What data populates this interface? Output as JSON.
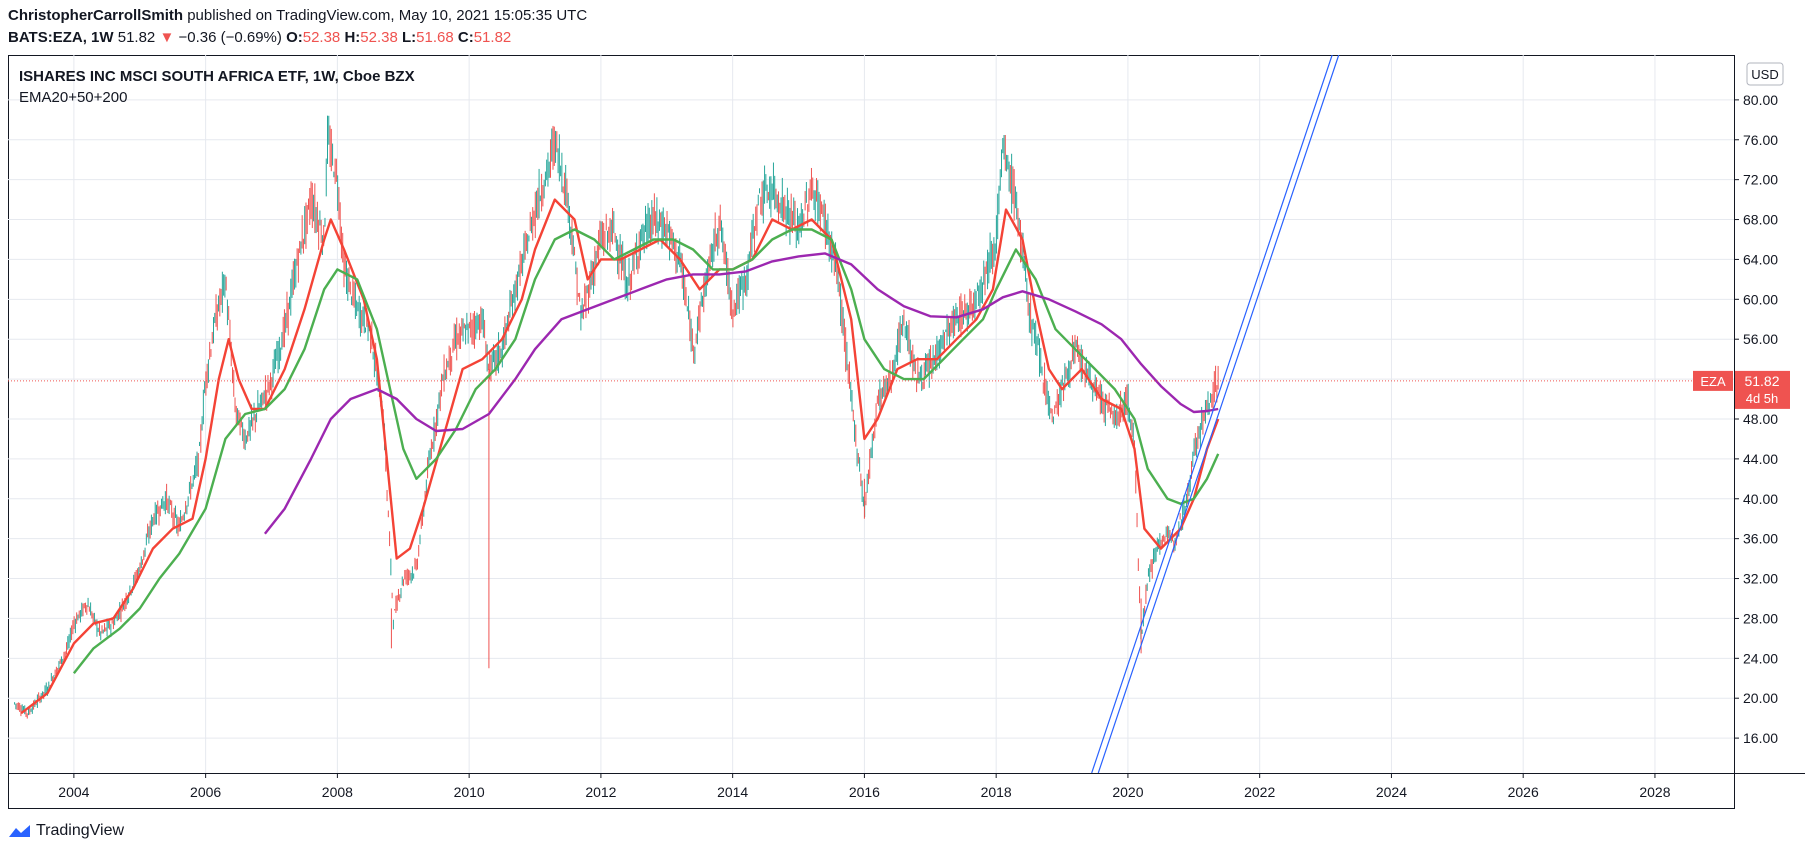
{
  "header": {
    "author": "ChristopherCarrollSmith",
    "published_text": "published on TradingView.com, May 10, 2021 15:05:35 UTC",
    "symbol": "BATS:EZA, 1W",
    "last_price": "51.82",
    "change": "−0.36 (−0.69%)",
    "open_label": "O:",
    "open": "52.38",
    "high_label": "H:",
    "high": "52.38",
    "low_label": "L:",
    "low": "51.68",
    "close_label": "C:",
    "close": "51.82"
  },
  "footer": {
    "brand": "TradingView"
  },
  "colors": {
    "ema20": "#f44336",
    "ema50": "#4caf50",
    "ema200": "#9c27b0",
    "trend": "#2962ff",
    "up": "#26a69a",
    "down": "#ef5350",
    "badge": "#ef5350"
  },
  "chart_data": {
    "type": "line",
    "title": "ISHARES INC MSCI SOUTH AFRICA ETF, 1W, Cboe BZX",
    "subtitle": "EMA20+50+200",
    "currency": "USD",
    "badge": {
      "symbol": "EZA",
      "price": "51.82",
      "countdown": "4d 5h",
      "value": 51.82
    },
    "xlim": [
      2003.0,
      2029.2
    ],
    "ylim": [
      12.5,
      84.5
    ],
    "x_ticks": [
      "2004",
      "2006",
      "2008",
      "2010",
      "2012",
      "2014",
      "2016",
      "2018",
      "2020",
      "2022",
      "2024",
      "2026",
      "2028"
    ],
    "y_ticks": [
      "16.00",
      "20.00",
      "24.00",
      "28.00",
      "32.00",
      "36.00",
      "40.00",
      "44.00",
      "48.00",
      "52.00",
      "56.00",
      "60.00",
      "64.00",
      "68.00",
      "72.00",
      "76.00",
      "80.00"
    ],
    "series": [
      {
        "key": "price",
        "values": [
          [
            2003.1,
            19.5
          ],
          [
            2003.3,
            18.5
          ],
          [
            2003.6,
            21
          ],
          [
            2003.9,
            25
          ],
          [
            2004.0,
            27.5
          ],
          [
            2004.2,
            29.5
          ],
          [
            2004.4,
            26.5
          ],
          [
            2004.6,
            27.5
          ],
          [
            2004.8,
            30
          ],
          [
            2005.0,
            33
          ],
          [
            2005.2,
            38
          ],
          [
            2005.4,
            40
          ],
          [
            2005.6,
            37
          ],
          [
            2005.9,
            44
          ],
          [
            2006.0,
            52
          ],
          [
            2006.15,
            58
          ],
          [
            2006.3,
            62
          ],
          [
            2006.45,
            49
          ],
          [
            2006.6,
            46
          ],
          [
            2006.8,
            49
          ],
          [
            2007.0,
            52
          ],
          [
            2007.2,
            57
          ],
          [
            2007.4,
            64
          ],
          [
            2007.6,
            70
          ],
          [
            2007.8,
            66
          ],
          [
            2007.85,
            76
          ],
          [
            2008.0,
            72
          ],
          [
            2008.1,
            63
          ],
          [
            2008.3,
            59
          ],
          [
            2008.5,
            57
          ],
          [
            2008.7,
            48
          ],
          [
            2008.85,
            28
          ],
          [
            2009.0,
            32
          ],
          [
            2009.2,
            33
          ],
          [
            2009.4,
            44
          ],
          [
            2009.6,
            52
          ],
          [
            2009.8,
            56
          ],
          [
            2010.0,
            57
          ],
          [
            2010.2,
            58
          ],
          [
            2010.3,
            53
          ],
          [
            2010.5,
            55
          ],
          [
            2010.7,
            61
          ],
          [
            2010.9,
            66
          ],
          [
            2011.0,
            69
          ],
          [
            2011.2,
            73
          ],
          [
            2011.3,
            76
          ],
          [
            2011.5,
            70
          ],
          [
            2011.7,
            58
          ],
          [
            2011.85,
            62
          ],
          [
            2012.0,
            66
          ],
          [
            2012.2,
            67
          ],
          [
            2012.4,
            61
          ],
          [
            2012.6,
            66
          ],
          [
            2012.8,
            68
          ],
          [
            2013.0,
            67
          ],
          [
            2013.2,
            64
          ],
          [
            2013.4,
            55
          ],
          [
            2013.6,
            62
          ],
          [
            2013.8,
            68
          ],
          [
            2014.0,
            59
          ],
          [
            2014.2,
            62
          ],
          [
            2014.4,
            70
          ],
          [
            2014.6,
            71
          ],
          [
            2014.8,
            69
          ],
          [
            2015.0,
            67
          ],
          [
            2015.2,
            71
          ],
          [
            2015.4,
            68
          ],
          [
            2015.6,
            62
          ],
          [
            2015.8,
            50
          ],
          [
            2016.0,
            39
          ],
          [
            2016.2,
            50
          ],
          [
            2016.4,
            52
          ],
          [
            2016.6,
            58
          ],
          [
            2016.8,
            52
          ],
          [
            2017.0,
            53
          ],
          [
            2017.2,
            56
          ],
          [
            2017.4,
            58
          ],
          [
            2017.6,
            59
          ],
          [
            2017.8,
            62
          ],
          [
            2018.0,
            66
          ],
          [
            2018.1,
            75
          ],
          [
            2018.3,
            70
          ],
          [
            2018.5,
            59
          ],
          [
            2018.7,
            53
          ],
          [
            2018.85,
            48
          ],
          [
            2019.0,
            51
          ],
          [
            2019.2,
            55
          ],
          [
            2019.4,
            52
          ],
          [
            2019.6,
            50
          ],
          [
            2019.8,
            48
          ],
          [
            2020.0,
            50
          ],
          [
            2020.1,
            45
          ],
          [
            2020.2,
            26
          ],
          [
            2020.3,
            32
          ],
          [
            2020.5,
            36
          ],
          [
            2020.7,
            36
          ],
          [
            2020.9,
            40
          ],
          [
            2021.0,
            45
          ],
          [
            2021.2,
            49
          ],
          [
            2021.3,
            51
          ],
          [
            2021.37,
            51.8
          ]
        ]
      },
      {
        "key": "ema20",
        "values": [
          [
            2003.2,
            18.5
          ],
          [
            2003.6,
            20.5
          ],
          [
            2004.0,
            25.5
          ],
          [
            2004.3,
            27.5
          ],
          [
            2004.6,
            28
          ],
          [
            2004.9,
            31
          ],
          [
            2005.2,
            35
          ],
          [
            2005.5,
            37
          ],
          [
            2005.8,
            38
          ],
          [
            2006.0,
            44
          ],
          [
            2006.2,
            52
          ],
          [
            2006.35,
            56
          ],
          [
            2006.5,
            52
          ],
          [
            2006.7,
            49
          ],
          [
            2006.9,
            49
          ],
          [
            2007.2,
            53
          ],
          [
            2007.5,
            59
          ],
          [
            2007.8,
            66
          ],
          [
            2007.9,
            68
          ],
          [
            2008.1,
            65
          ],
          [
            2008.4,
            60
          ],
          [
            2008.6,
            54
          ],
          [
            2008.75,
            44
          ],
          [
            2008.9,
            34
          ],
          [
            2009.1,
            35
          ],
          [
            2009.3,
            39
          ],
          [
            2009.6,
            46
          ],
          [
            2009.9,
            53
          ],
          [
            2010.2,
            54
          ],
          [
            2010.5,
            56
          ],
          [
            2010.8,
            60
          ],
          [
            2011.0,
            65
          ],
          [
            2011.3,
            70
          ],
          [
            2011.6,
            68
          ],
          [
            2011.8,
            62
          ],
          [
            2012.0,
            64
          ],
          [
            2012.3,
            64
          ],
          [
            2012.6,
            65
          ],
          [
            2012.9,
            66
          ],
          [
            2013.2,
            64
          ],
          [
            2013.5,
            61
          ],
          [
            2013.8,
            63
          ],
          [
            2014.0,
            63
          ],
          [
            2014.3,
            64
          ],
          [
            2014.6,
            68
          ],
          [
            2014.9,
            67
          ],
          [
            2015.2,
            68
          ],
          [
            2015.5,
            66
          ],
          [
            2015.8,
            58
          ],
          [
            2016.0,
            46
          ],
          [
            2016.2,
            48
          ],
          [
            2016.5,
            53
          ],
          [
            2016.8,
            54
          ],
          [
            2017.1,
            54
          ],
          [
            2017.4,
            56
          ],
          [
            2017.7,
            58
          ],
          [
            2017.95,
            61
          ],
          [
            2018.15,
            69
          ],
          [
            2018.4,
            66
          ],
          [
            2018.6,
            59
          ],
          [
            2018.8,
            53
          ],
          [
            2019.0,
            51
          ],
          [
            2019.3,
            53
          ],
          [
            2019.6,
            50
          ],
          [
            2019.9,
            49
          ],
          [
            2020.1,
            45
          ],
          [
            2020.25,
            37
          ],
          [
            2020.5,
            35
          ],
          [
            2020.8,
            37
          ],
          [
            2021.0,
            40
          ],
          [
            2021.2,
            45
          ],
          [
            2021.37,
            48
          ]
        ]
      },
      {
        "key": "ema50",
        "values": [
          [
            2004.0,
            22.5
          ],
          [
            2004.3,
            25
          ],
          [
            2004.7,
            27
          ],
          [
            2005.0,
            29
          ],
          [
            2005.3,
            32
          ],
          [
            2005.6,
            34.5
          ],
          [
            2006.0,
            39
          ],
          [
            2006.3,
            46
          ],
          [
            2006.6,
            48.5
          ],
          [
            2006.9,
            49
          ],
          [
            2007.2,
            51
          ],
          [
            2007.5,
            55
          ],
          [
            2007.8,
            61
          ],
          [
            2008.0,
            63
          ],
          [
            2008.3,
            62
          ],
          [
            2008.6,
            57
          ],
          [
            2008.8,
            51
          ],
          [
            2009.0,
            45
          ],
          [
            2009.2,
            42
          ],
          [
            2009.5,
            44
          ],
          [
            2009.8,
            47
          ],
          [
            2010.1,
            51
          ],
          [
            2010.4,
            53
          ],
          [
            2010.7,
            56
          ],
          [
            2011.0,
            62
          ],
          [
            2011.3,
            66
          ],
          [
            2011.6,
            67
          ],
          [
            2011.9,
            66
          ],
          [
            2012.2,
            64
          ],
          [
            2012.5,
            65
          ],
          [
            2012.8,
            66
          ],
          [
            2013.1,
            66
          ],
          [
            2013.4,
            65
          ],
          [
            2013.7,
            63
          ],
          [
            2014.0,
            63
          ],
          [
            2014.3,
            64
          ],
          [
            2014.6,
            66
          ],
          [
            2014.9,
            67
          ],
          [
            2015.2,
            67
          ],
          [
            2015.5,
            66
          ],
          [
            2015.8,
            61
          ],
          [
            2016.0,
            56
          ],
          [
            2016.3,
            53
          ],
          [
            2016.6,
            52
          ],
          [
            2016.9,
            52
          ],
          [
            2017.2,
            54
          ],
          [
            2017.5,
            56
          ],
          [
            2017.8,
            58
          ],
          [
            2018.0,
            61
          ],
          [
            2018.3,
            65
          ],
          [
            2018.6,
            62
          ],
          [
            2018.9,
            57
          ],
          [
            2019.2,
            55
          ],
          [
            2019.5,
            53
          ],
          [
            2019.8,
            51
          ],
          [
            2020.1,
            48
          ],
          [
            2020.3,
            43
          ],
          [
            2020.6,
            40
          ],
          [
            2020.8,
            39.5
          ],
          [
            2021.0,
            40
          ],
          [
            2021.2,
            42
          ],
          [
            2021.37,
            44.5
          ]
        ]
      },
      {
        "key": "ema200",
        "values": [
          [
            2006.9,
            36.5
          ],
          [
            2007.2,
            39
          ],
          [
            2007.6,
            44
          ],
          [
            2007.9,
            48
          ],
          [
            2008.2,
            50
          ],
          [
            2008.6,
            51
          ],
          [
            2008.9,
            50
          ],
          [
            2009.2,
            48
          ],
          [
            2009.5,
            46.8
          ],
          [
            2009.9,
            47
          ],
          [
            2010.3,
            48.5
          ],
          [
            2010.7,
            52
          ],
          [
            2011.0,
            55
          ],
          [
            2011.4,
            58
          ],
          [
            2011.8,
            59
          ],
          [
            2012.2,
            60
          ],
          [
            2012.6,
            61
          ],
          [
            2013.0,
            62
          ],
          [
            2013.4,
            62.5
          ],
          [
            2013.8,
            62.5
          ],
          [
            2014.2,
            62.8
          ],
          [
            2014.6,
            63.8
          ],
          [
            2015.0,
            64.3
          ],
          [
            2015.4,
            64.6
          ],
          [
            2015.8,
            63.5
          ],
          [
            2016.2,
            61
          ],
          [
            2016.6,
            59.3
          ],
          [
            2017.0,
            58.3
          ],
          [
            2017.4,
            58.2
          ],
          [
            2017.8,
            59
          ],
          [
            2018.1,
            60.2
          ],
          [
            2018.4,
            60.8
          ],
          [
            2018.8,
            60
          ],
          [
            2019.2,
            58.8
          ],
          [
            2019.6,
            57.5
          ],
          [
            2019.9,
            56
          ],
          [
            2020.2,
            53.5
          ],
          [
            2020.5,
            51.3
          ],
          [
            2020.8,
            49.5
          ],
          [
            2021.0,
            48.7
          ],
          [
            2021.2,
            48.8
          ],
          [
            2021.37,
            49
          ]
        ]
      }
    ],
    "trendlines": [
      {
        "from": [
          2019.55,
          12.5
        ],
        "to": [
          2023.2,
          84.5
        ]
      },
      {
        "from": [
          2019.45,
          12.5
        ],
        "to": [
          2023.1,
          84.5
        ]
      }
    ],
    "grid": true,
    "legend": "top-left"
  }
}
